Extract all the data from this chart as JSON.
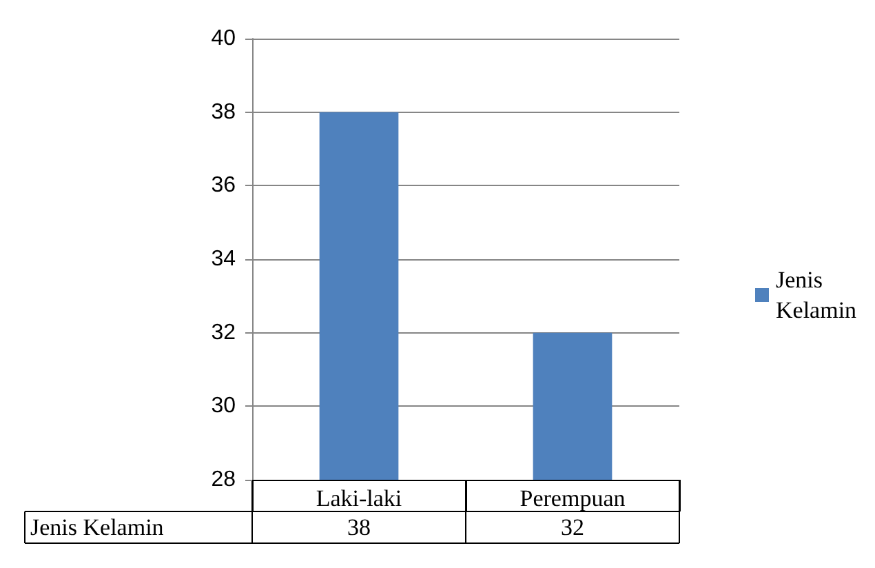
{
  "chart_data": {
    "type": "bar",
    "categories": [
      "Laki-laki",
      "Perempuan"
    ],
    "series": [
      {
        "name": "Jenis Kelamin",
        "color": "#4f81bd",
        "values": [
          38,
          32
        ]
      }
    ],
    "ylim": [
      28,
      40
    ],
    "yticks": [
      28,
      30,
      32,
      34,
      36,
      38,
      40
    ],
    "grid": "y",
    "legend": "right",
    "data_labels": true
  }
}
